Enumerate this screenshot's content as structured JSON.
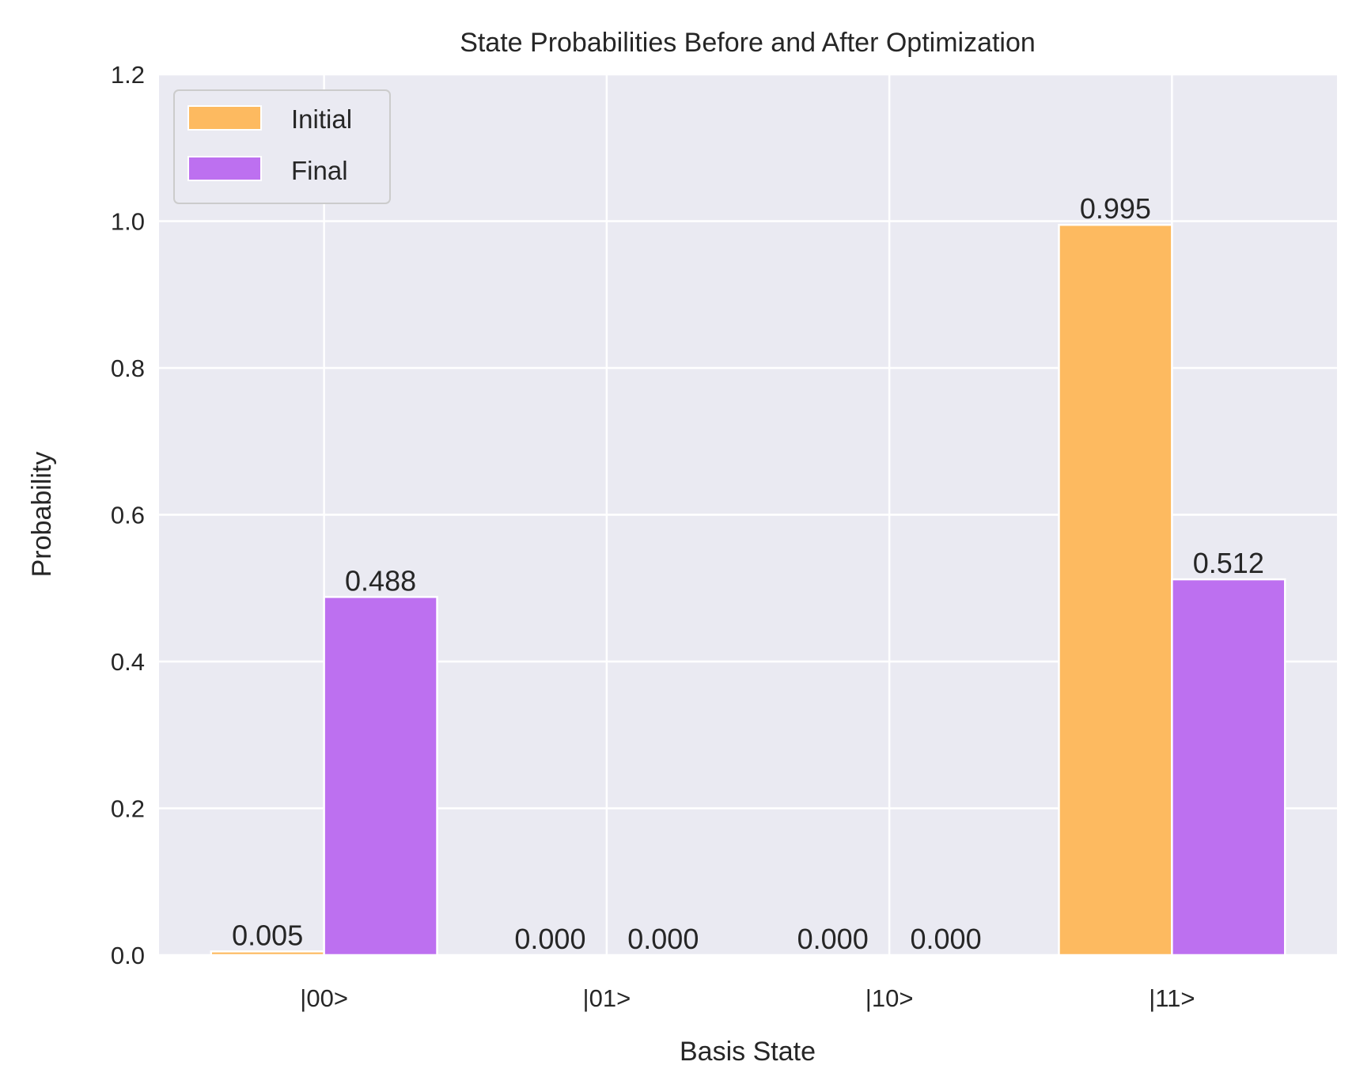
{
  "chart_data": {
    "type": "bar",
    "title": "State Probabilities Before and After Optimization",
    "xlabel": "Basis State",
    "ylabel": "Probability",
    "categories": [
      "|00>",
      "|01>",
      "|10>",
      "|11>"
    ],
    "series": [
      {
        "name": "Initial",
        "values": [
          0.005,
          0.0,
          0.0,
          0.995
        ],
        "labels": [
          "0.005",
          "0.000",
          "0.000",
          "0.995"
        ],
        "color": "#FDBA60"
      },
      {
        "name": "Final",
        "values": [
          0.488,
          0.0,
          0.0,
          0.512
        ],
        "labels": [
          "0.488",
          "0.000",
          "0.000",
          "0.512"
        ],
        "color": "#BD70F0"
      }
    ],
    "ylim": [
      0,
      1.2
    ],
    "yticks": [
      "0.0",
      "0.2",
      "0.4",
      "0.6",
      "0.8",
      "1.0",
      "1.2"
    ],
    "grid": true,
    "background": "#EAEAF2",
    "legend_position": "top-left"
  }
}
